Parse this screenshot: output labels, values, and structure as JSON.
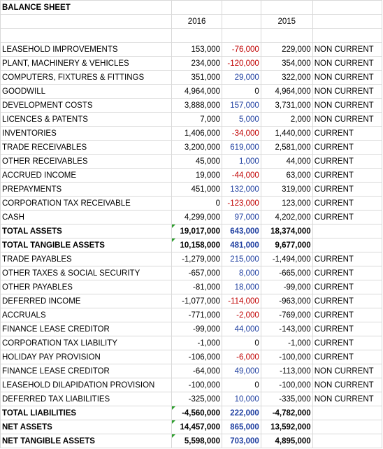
{
  "sheet": {
    "title": "BALANCE SHEET",
    "headers": {
      "y2016": "2016",
      "y2015": "2015"
    },
    "rows": [
      {
        "label": "LEASEHOLD IMPROVEMENTS",
        "y2016": "153,000",
        "change": "-76,000",
        "y2015": "229,000",
        "class": "NON CURRENT",
        "sign": "neg",
        "bold": false
      },
      {
        "label": "PLANT, MACHINERY & VEHICLES",
        "y2016": "234,000",
        "change": "-120,000",
        "y2015": "354,000",
        "class": "NON CURRENT",
        "sign": "neg",
        "bold": false
      },
      {
        "label": "COMPUTERS, FIXTURES & FITTINGS",
        "y2016": "351,000",
        "change": "29,000",
        "y2015": "322,000",
        "class": "NON CURRENT",
        "sign": "pos",
        "bold": false
      },
      {
        "label": "GOODWILL",
        "y2016": "4,964,000",
        "change": "0",
        "y2015": "4,964,000",
        "class": "NON CURRENT",
        "sign": "zero",
        "bold": false
      },
      {
        "label": "DEVELOPMENT COSTS",
        "y2016": "3,888,000",
        "change": "157,000",
        "y2015": "3,731,000",
        "class": "NON CURRENT",
        "sign": "pos",
        "bold": false
      },
      {
        "label": "LICENCES & PATENTS",
        "y2016": "7,000",
        "change": "5,000",
        "y2015": "2,000",
        "class": "NON CURRENT",
        "sign": "pos",
        "bold": false
      },
      {
        "label": "INVENTORIES",
        "y2016": "1,406,000",
        "change": "-34,000",
        "y2015": "1,440,000",
        "class": "CURRENT",
        "sign": "neg",
        "bold": false
      },
      {
        "label": "TRADE RECEIVABLES",
        "y2016": "3,200,000",
        "change": "619,000",
        "y2015": "2,581,000",
        "class": "CURRENT",
        "sign": "pos",
        "bold": false
      },
      {
        "label": "OTHER RECEIVABLES",
        "y2016": "45,000",
        "change": "1,000",
        "y2015": "44,000",
        "class": "CURRENT",
        "sign": "pos",
        "bold": false
      },
      {
        "label": "ACCRUED INCOME",
        "y2016": "19,000",
        "change": "-44,000",
        "y2015": "63,000",
        "class": "CURRENT",
        "sign": "neg",
        "bold": false
      },
      {
        "label": "PREPAYMENTS",
        "y2016": "451,000",
        "change": "132,000",
        "y2015": "319,000",
        "class": "CURRENT",
        "sign": "pos",
        "bold": false
      },
      {
        "label": "CORPORATION TAX RECEIVABLE",
        "y2016": "0",
        "change": "-123,000",
        "y2015": "123,000",
        "class": "CURRENT",
        "sign": "neg",
        "bold": false
      },
      {
        "label": "CASH",
        "y2016": "4,299,000",
        "change": "97,000",
        "y2015": "4,202,000",
        "class": "CURRENT",
        "sign": "pos",
        "bold": false
      },
      {
        "label": "TOTAL ASSETS",
        "y2016": "19,017,000",
        "change": "643,000",
        "y2015": "18,374,000",
        "class": "",
        "sign": "pos",
        "bold": true,
        "flag": true
      },
      {
        "label": "TOTAL TANGIBLE ASSETS",
        "y2016": "10,158,000",
        "change": "481,000",
        "y2015": "9,677,000",
        "class": "",
        "sign": "pos",
        "bold": true,
        "flag": true
      },
      {
        "label": "TRADE PAYABLES",
        "y2016": "-1,279,000",
        "change": "215,000",
        "y2015": "-1,494,000",
        "class": "CURRENT",
        "sign": "pos",
        "bold": false
      },
      {
        "label": "OTHER TAXES & SOCIAL SECURITY",
        "y2016": "-657,000",
        "change": "8,000",
        "y2015": "-665,000",
        "class": "CURRENT",
        "sign": "pos",
        "bold": false
      },
      {
        "label": "OTHER PAYABLES",
        "y2016": "-81,000",
        "change": "18,000",
        "y2015": "-99,000",
        "class": "CURRENT",
        "sign": "pos",
        "bold": false
      },
      {
        "label": "DEFERRED INCOME",
        "y2016": "-1,077,000",
        "change": "-114,000",
        "y2015": "-963,000",
        "class": "CURRENT",
        "sign": "neg",
        "bold": false
      },
      {
        "label": "ACCRUALS",
        "y2016": "-771,000",
        "change": "-2,000",
        "y2015": "-769,000",
        "class": "CURRENT",
        "sign": "neg",
        "bold": false
      },
      {
        "label": "FINANCE LEASE CREDITOR",
        "y2016": "-99,000",
        "change": "44,000",
        "y2015": "-143,000",
        "class": "CURRENT",
        "sign": "pos",
        "bold": false
      },
      {
        "label": "CORPORATION TAX LIABILITY",
        "y2016": "-1,000",
        "change": "0",
        "y2015": "-1,000",
        "class": "CURRENT",
        "sign": "zero",
        "bold": false
      },
      {
        "label": "HOLIDAY PAY PROVISION",
        "y2016": "-106,000",
        "change": "-6,000",
        "y2015": "-100,000",
        "class": "CURRENT",
        "sign": "neg",
        "bold": false
      },
      {
        "label": "FINANCE LEASE CREDITOR",
        "y2016": "-64,000",
        "change": "49,000",
        "y2015": "-113,000",
        "class": "NON CURRENT",
        "sign": "pos",
        "bold": false
      },
      {
        "label": "LEASEHOLD DILAPIDATION PROVISION",
        "y2016": "-100,000",
        "change": "0",
        "y2015": "-100,000",
        "class": "NON CURRENT",
        "sign": "zero",
        "bold": false
      },
      {
        "label": "DEFERRED TAX LIABILITIES",
        "y2016": "-325,000",
        "change": "10,000",
        "y2015": "-335,000",
        "class": "NON CURRENT",
        "sign": "pos",
        "bold": false
      },
      {
        "label": "TOTAL LIABILITIES",
        "y2016": "-4,560,000",
        "change": "222,000",
        "y2015": "-4,782,000",
        "class": "",
        "sign": "pos",
        "bold": true,
        "flag": true
      },
      {
        "label": "NET ASSETS",
        "y2016": "14,457,000",
        "change": "865,000",
        "y2015": "13,592,000",
        "class": "",
        "sign": "pos",
        "bold": true,
        "flag": true
      },
      {
        "label": "NET TANGIBLE ASSETS",
        "y2016": "5,598,000",
        "change": "703,000",
        "y2015": "4,895,000",
        "class": "",
        "sign": "pos",
        "bold": true,
        "flag": true
      }
    ]
  },
  "colors": {
    "negative": "#c00000",
    "positive": "#1f3fa0",
    "gridline": "#d9d9d9",
    "error_flag": "#2e9e2e"
  }
}
